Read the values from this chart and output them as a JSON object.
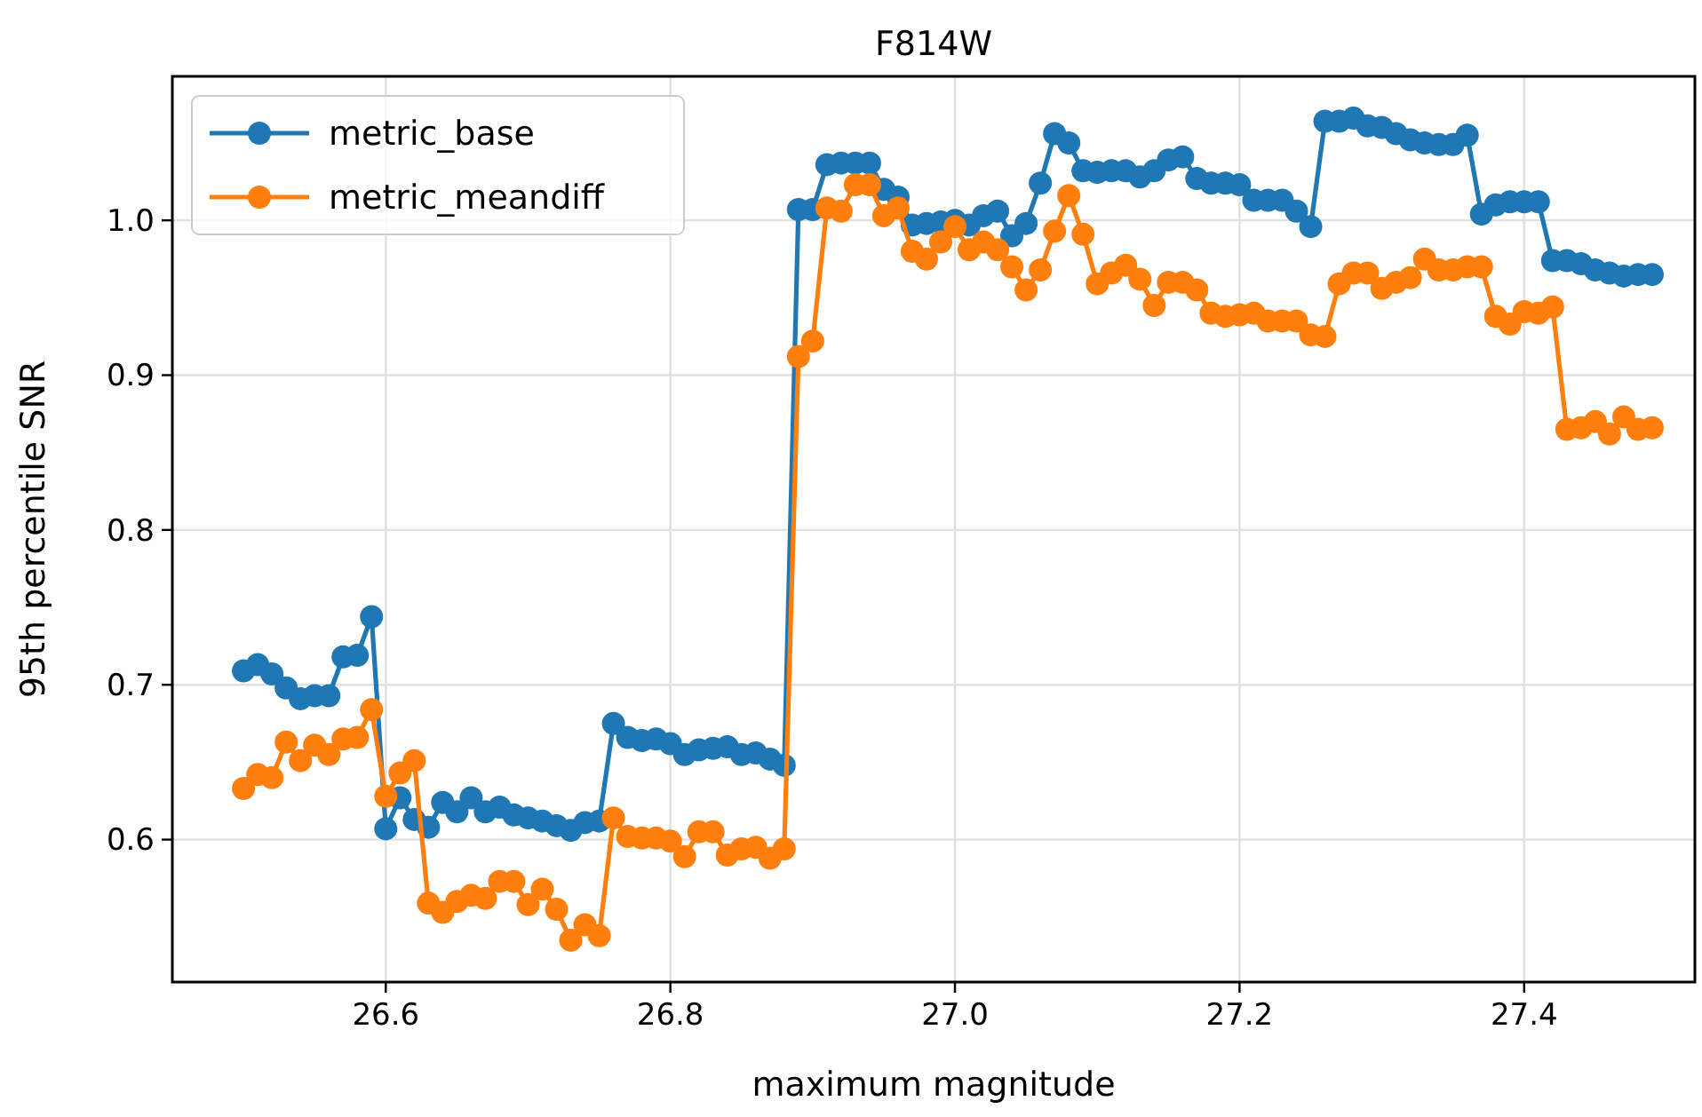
{
  "chart_data": {
    "type": "line",
    "title": "F814W",
    "xlabel": "maximum magnitude",
    "ylabel": "95th percentile SNR",
    "x": [
      26.5,
      26.51,
      26.52,
      26.53,
      26.54,
      26.55,
      26.56,
      26.57,
      26.58,
      26.59,
      26.6,
      26.61,
      26.62,
      26.63,
      26.64,
      26.65,
      26.66,
      26.67,
      26.68,
      26.69,
      26.7,
      26.71,
      26.72,
      26.73,
      26.74,
      26.75,
      26.76,
      26.77,
      26.78,
      26.79,
      26.8,
      26.81,
      26.82,
      26.83,
      26.84,
      26.85,
      26.86,
      26.87,
      26.88,
      26.89,
      26.9,
      26.91,
      26.92,
      26.93,
      26.94,
      26.95,
      26.96,
      26.97,
      26.98,
      26.99,
      27.0,
      27.01,
      27.02,
      27.03,
      27.04,
      27.05,
      27.06,
      27.07,
      27.08,
      27.09,
      27.1,
      27.11,
      27.12,
      27.13,
      27.14,
      27.15,
      27.16,
      27.17,
      27.18,
      27.19,
      27.2,
      27.21,
      27.22,
      27.23,
      27.24,
      27.25,
      27.26,
      27.27,
      27.28,
      27.29,
      27.3,
      27.31,
      27.32,
      27.33,
      27.34,
      27.35,
      27.36,
      27.37,
      27.38,
      27.39,
      27.4,
      27.41,
      27.42,
      27.43,
      27.44,
      27.45,
      27.46,
      27.47,
      27.48,
      27.49
    ],
    "series": [
      {
        "name": "metric_base",
        "color": "#1f77b4",
        "values": [
          0.709,
          0.713,
          0.707,
          0.698,
          0.691,
          0.693,
          0.693,
          0.718,
          0.719,
          0.744,
          0.607,
          0.627,
          0.613,
          0.608,
          0.624,
          0.618,
          0.627,
          0.618,
          0.621,
          0.616,
          0.614,
          0.612,
          0.609,
          0.606,
          0.611,
          0.612,
          0.675,
          0.666,
          0.664,
          0.665,
          0.662,
          0.655,
          0.658,
          0.659,
          0.66,
          0.655,
          0.656,
          0.652,
          0.648,
          1.007,
          1.007,
          1.036,
          1.037,
          1.037,
          1.037,
          1.02,
          1.015,
          0.997,
          0.998,
          0.999,
          1.0,
          0.997,
          1.003,
          1.006,
          0.99,
          0.998,
          1.024,
          1.056,
          1.05,
          1.032,
          1.031,
          1.032,
          1.032,
          1.028,
          1.032,
          1.039,
          1.041,
          1.027,
          1.024,
          1.024,
          1.023,
          1.013,
          1.013,
          1.013,
          1.006,
          0.996,
          1.064,
          1.064,
          1.066,
          1.061,
          1.06,
          1.056,
          1.052,
          1.05,
          1.049,
          1.049,
          1.055,
          1.004,
          1.01,
          1.012,
          1.012,
          1.012,
          0.974,
          0.974,
          0.972,
          0.968,
          0.966,
          0.964,
          0.965,
          0.965
        ]
      },
      {
        "name": "metric_meandiff",
        "color": "#ff7f0e",
        "values": [
          0.633,
          0.642,
          0.64,
          0.663,
          0.651,
          0.661,
          0.655,
          0.665,
          0.666,
          0.684,
          0.628,
          0.643,
          0.651,
          0.559,
          0.553,
          0.56,
          0.564,
          0.562,
          0.573,
          0.573,
          0.558,
          0.568,
          0.555,
          0.535,
          0.545,
          0.538,
          0.614,
          0.602,
          0.601,
          0.601,
          0.599,
          0.589,
          0.605,
          0.605,
          0.59,
          0.594,
          0.595,
          0.588,
          0.594,
          0.912,
          0.922,
          1.008,
          1.006,
          1.023,
          1.023,
          1.003,
          1.008,
          0.98,
          0.975,
          0.986,
          0.996,
          0.981,
          0.986,
          0.981,
          0.97,
          0.955,
          0.968,
          0.993,
          1.016,
          0.991,
          0.959,
          0.966,
          0.971,
          0.962,
          0.945,
          0.96,
          0.96,
          0.955,
          0.94,
          0.938,
          0.939,
          0.94,
          0.935,
          0.935,
          0.935,
          0.926,
          0.925,
          0.959,
          0.966,
          0.966,
          0.956,
          0.96,
          0.963,
          0.975,
          0.968,
          0.968,
          0.97,
          0.97,
          0.938,
          0.933,
          0.941,
          0.94,
          0.944,
          0.865,
          0.866,
          0.87,
          0.862,
          0.873,
          0.865,
          0.866
        ]
      }
    ],
    "xlim": [
      26.45,
      27.52
    ],
    "xticks": [
      {
        "value": 26.6,
        "label": "26.6"
      },
      {
        "value": 26.8,
        "label": "26.8"
      },
      {
        "value": 27.0,
        "label": "27.0"
      },
      {
        "value": 27.2,
        "label": "27.2"
      },
      {
        "value": 27.4,
        "label": "27.4"
      }
    ],
    "ylim": [
      0.508,
      1.093
    ],
    "yticks": [
      {
        "value": 0.6,
        "label": "0.6"
      },
      {
        "value": 0.7,
        "label": "0.7"
      },
      {
        "value": 0.8,
        "label": "0.8"
      },
      {
        "value": 0.9,
        "label": "0.9"
      },
      {
        "value": 1.0,
        "label": "1.0"
      }
    ],
    "grid": true,
    "legend": "top left",
    "marker": "circle",
    "line_style": "solid"
  }
}
